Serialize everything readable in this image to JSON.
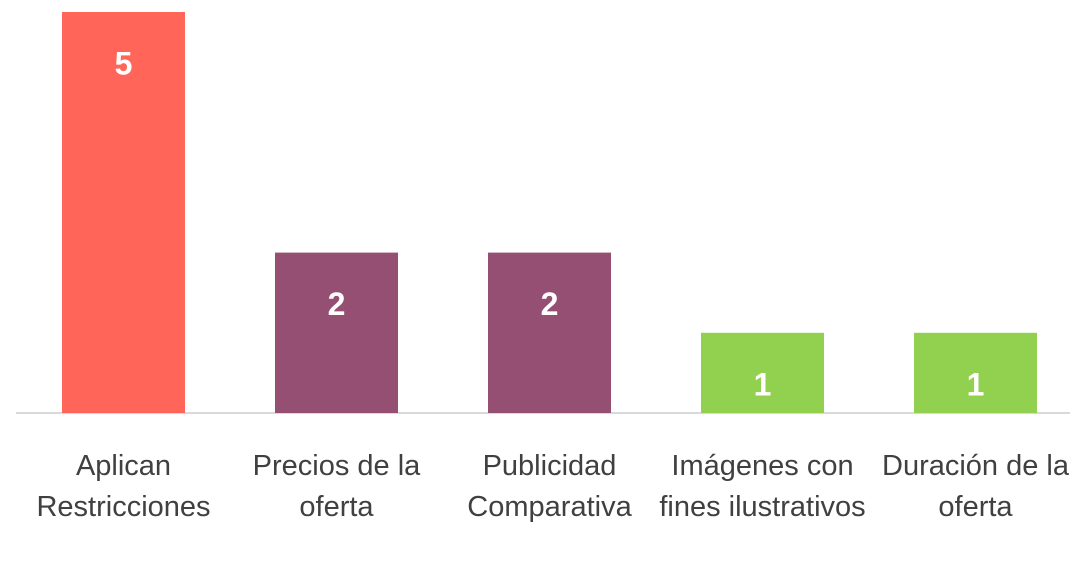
{
  "chart_data": {
    "type": "bar",
    "categories": [
      "Aplican Restricciones",
      "Precios de la oferta",
      "Publicidad Comparativa",
      "Imágenes con fines ilustrativos",
      "Duración de la oferta"
    ],
    "values": [
      5,
      2,
      2,
      1,
      1
    ],
    "colors": [
      "#ff6659",
      "#954f72",
      "#954f72",
      "#92d050",
      "#92d050"
    ],
    "ylim": [
      0,
      5
    ]
  }
}
